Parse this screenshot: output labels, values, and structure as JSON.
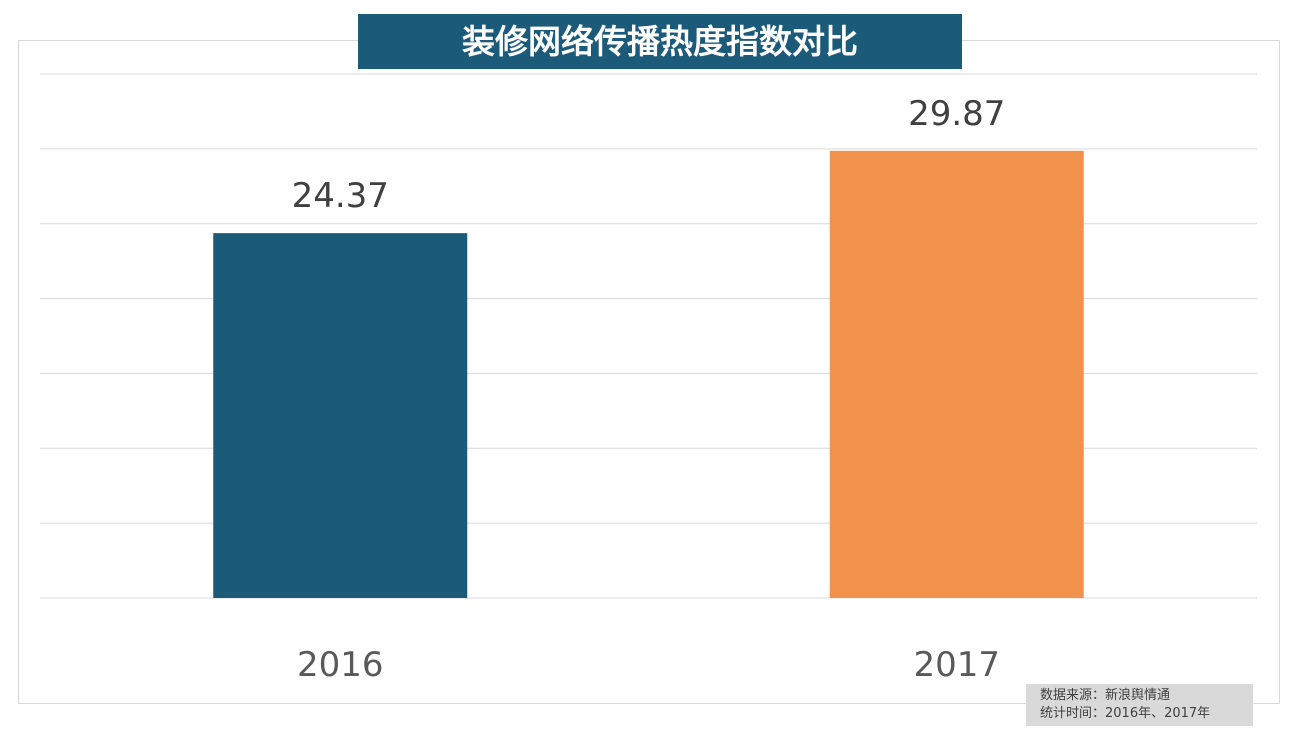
{
  "chart_data": {
    "type": "bar",
    "title": "装修网络传播热度指数对比",
    "categories": [
      "2016",
      "2017"
    ],
    "values": [
      24.37,
      29.87
    ],
    "colors": [
      "#1c5a7a",
      "#f0924b"
    ],
    "ylim": [
      0,
      35
    ],
    "ytick_step": 5,
    "grid": true,
    "show_y_axis_labels": false,
    "xlabel": "",
    "ylabel": ""
  },
  "footnote": {
    "source": "数据来源：新浪舆情通",
    "period": "统计时间：2016年、2017年"
  }
}
